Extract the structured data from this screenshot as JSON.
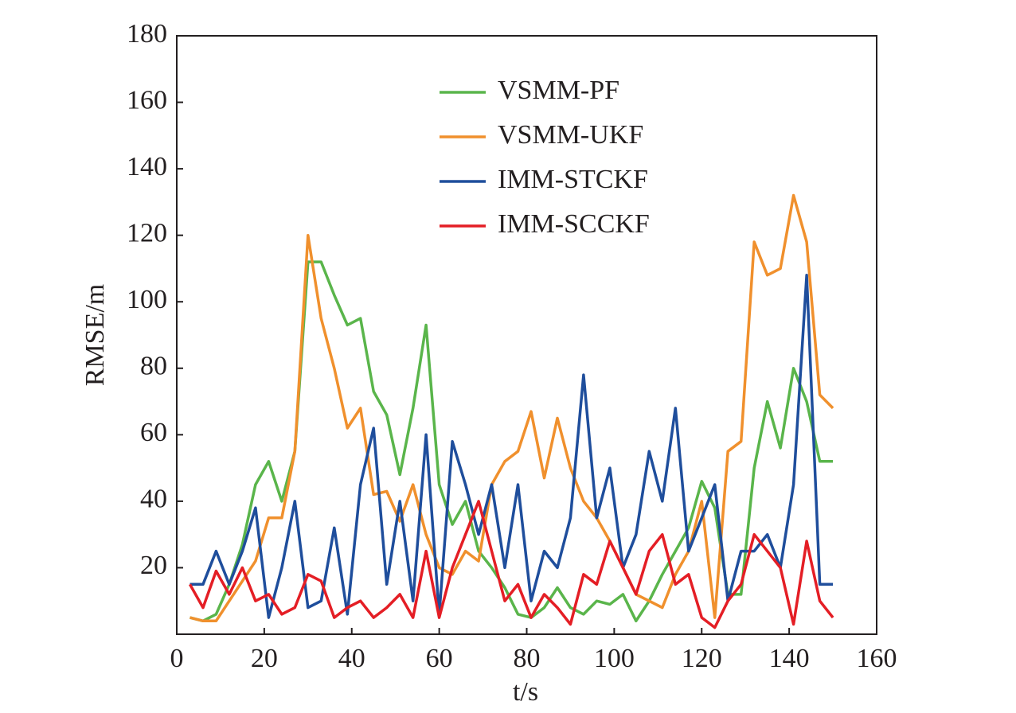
{
  "chart_data": {
    "type": "line",
    "xlabel": "t/s",
    "ylabel": "RMSE/m",
    "x": [
      3,
      6,
      9,
      12,
      15,
      18,
      21,
      24,
      27,
      30,
      33,
      36,
      39,
      42,
      45,
      48,
      51,
      54,
      57,
      60,
      63,
      66,
      69,
      72,
      75,
      78,
      81,
      84,
      87,
      90,
      93,
      96,
      99,
      102,
      105,
      108,
      111,
      114,
      117,
      120,
      123,
      126,
      129,
      132,
      135,
      138,
      141,
      144,
      147,
      150
    ],
    "series": [
      {
        "name": "VSMM-PF",
        "color": "#5ab54b",
        "values": [
          5,
          4,
          6,
          15,
          27,
          45,
          52,
          40,
          55,
          112,
          112,
          102,
          93,
          95,
          73,
          66,
          48,
          68,
          93,
          45,
          33,
          40,
          25,
          20,
          14,
          6,
          5,
          8,
          14,
          8,
          6,
          10,
          9,
          12,
          4,
          10,
          18,
          25,
          32,
          46,
          38,
          12,
          12,
          50,
          70,
          56,
          80,
          70,
          52,
          52
        ]
      },
      {
        "name": "VSMM-UKF",
        "color": "#f0902d",
        "values": [
          5,
          4,
          4,
          10,
          16,
          22,
          35,
          35,
          55,
          120,
          95,
          80,
          62,
          68,
          42,
          43,
          34,
          45,
          30,
          20,
          18,
          25,
          22,
          45,
          52,
          55,
          67,
          47,
          65,
          50,
          40,
          35,
          28,
          20,
          12,
          10,
          8,
          18,
          25,
          40,
          5,
          55,
          58,
          118,
          108,
          110,
          132,
          118,
          72,
          68
        ]
      },
      {
        "name": "IMM-STCKF",
        "color": "#1f4e9c",
        "values": [
          15,
          15,
          25,
          15,
          25,
          38,
          5,
          20,
          40,
          8,
          10,
          32,
          6,
          45,
          62,
          15,
          40,
          10,
          60,
          6,
          58,
          45,
          30,
          45,
          20,
          45,
          10,
          25,
          20,
          35,
          78,
          35,
          50,
          20,
          30,
          55,
          40,
          68,
          25,
          35,
          45,
          10,
          25,
          25,
          30,
          20,
          45,
          108,
          15,
          15
        ]
      },
      {
        "name": "IMM-SCCKF",
        "color": "#e41e25",
        "values": [
          15,
          8,
          19,
          12,
          20,
          10,
          12,
          6,
          8,
          18,
          16,
          5,
          8,
          10,
          5,
          8,
          12,
          5,
          25,
          5,
          20,
          30,
          40,
          25,
          10,
          15,
          5,
          12,
          8,
          3,
          18,
          15,
          28,
          20,
          12,
          25,
          30,
          15,
          18,
          5,
          2,
          10,
          15,
          30,
          25,
          20,
          3,
          28,
          10,
          5
        ]
      }
    ],
    "xlim": [
      0,
      160
    ],
    "xticks": [
      0,
      20,
      40,
      60,
      80,
      100,
      120,
      140,
      160
    ],
    "ylim": [
      0,
      180
    ],
    "yticks": [
      20,
      40,
      60,
      80,
      100,
      120,
      140,
      160,
      180
    ],
    "grid": false,
    "legend": "top"
  }
}
